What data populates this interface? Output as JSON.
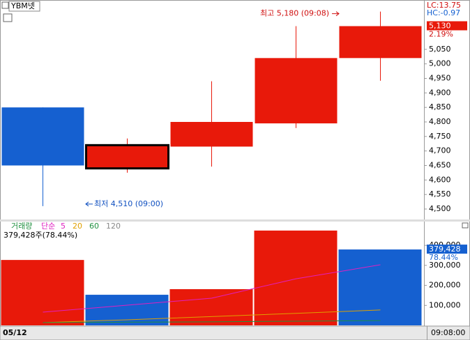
{
  "header": {
    "symbol": "YBM넷",
    "lc": "LC:13.75",
    "hc": "HC:-0.97",
    "date": "05/12",
    "time": "09:08:00"
  },
  "chart_data": [
    {
      "type": "candlestick",
      "up_color": "#e8190a",
      "down_color": "#1560d0",
      "selected": 1,
      "open": [
        4850,
        4640,
        4715,
        4795,
        5020
      ],
      "high": [
        4850,
        4743,
        4940,
        5130,
        5180
      ],
      "low": [
        4510,
        4625,
        4646,
        4779,
        4942
      ],
      "close": [
        4650,
        4720,
        4800,
        5020,
        5130
      ],
      "ylim": [
        4464,
        5220
      ],
      "yticks": [
        {
          "value": 4500,
          "label": "4,500"
        },
        {
          "value": 4550,
          "label": "4,550"
        },
        {
          "value": 4600,
          "label": "4,600"
        },
        {
          "value": 4650,
          "label": "4,650"
        },
        {
          "value": 4700,
          "label": "4,700"
        },
        {
          "value": 4750,
          "label": "4,750"
        },
        {
          "value": 4800,
          "label": "4,800"
        },
        {
          "value": 4850,
          "label": "4,850"
        },
        {
          "value": 4900,
          "label": "4,900"
        },
        {
          "value": 4950,
          "label": "4,950"
        },
        {
          "value": 5000,
          "label": "5,000"
        },
        {
          "value": 5050,
          "label": "5,050"
        }
      ],
      "last_price": {
        "value": 5130,
        "label": "5,130",
        "change": "2.19%"
      },
      "high_note": {
        "value": 5180,
        "label": "최고 5,180 (09:08)"
      },
      "low_note": {
        "value": 4510,
        "label": "최저 4,510 (09:00)"
      }
    },
    {
      "type": "bar",
      "title": "거래량",
      "ma_label": "단순",
      "summary": "379,428주(78.44%)",
      "values": [
        327000,
        153000,
        181000,
        474000,
        379428
      ],
      "colors": [
        "#e8190a",
        "#1560d0",
        "#e8190a",
        "#e8190a",
        "#1560d0"
      ],
      "ylim": [
        0,
        519000
      ],
      "yticks": [
        {
          "value": 100000,
          "label": "100,000"
        },
        {
          "value": 200000,
          "label": "200,000"
        },
        {
          "value": 300000,
          "label": "300,000"
        },
        {
          "value": 400000,
          "label": "400,000"
        }
      ],
      "last_volume": {
        "value": 379428,
        "label": "379,428",
        "ratio": "78.44%"
      },
      "series": [
        {
          "name": "5",
          "color": "#e020c0",
          "values": [
            66000,
            101000,
            136000,
            233000,
            303000
          ]
        },
        {
          "name": "20",
          "color": "#e0a000",
          "values": [
            14000,
            28000,
            44000,
            60000,
            77000
          ]
        },
        {
          "name": "60",
          "color": "#209040",
          "values": [
            14000,
            16000,
            18000,
            21000,
            24000
          ]
        },
        {
          "name": "120",
          "color": "#888888",
          "values": [
            null,
            null,
            null,
            null,
            null
          ]
        }
      ]
    }
  ]
}
